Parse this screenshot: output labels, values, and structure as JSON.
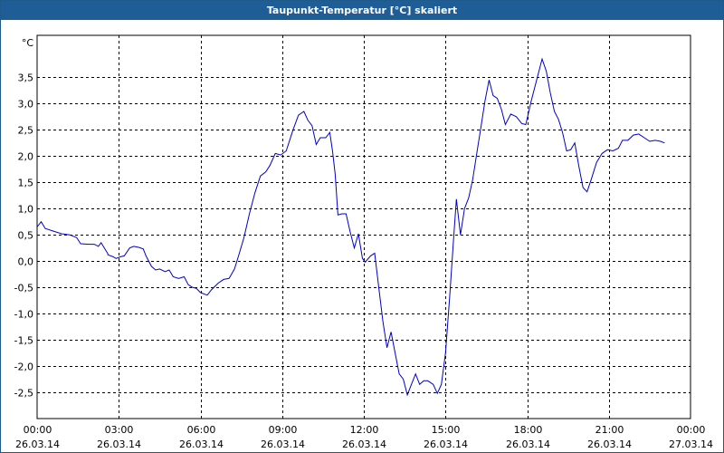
{
  "window": {
    "title": "Taupunkt-Temperatur [°C] skaliert"
  },
  "chart_data": {
    "type": "line",
    "title": "Taupunkt-Temperatur [°C] skaliert",
    "unit_label": "°C",
    "ylim": [
      -3.0,
      4.3
    ],
    "y_ticks": [
      3.5,
      3.0,
      2.5,
      2.0,
      1.5,
      1.0,
      0.5,
      0.0,
      -0.5,
      -1.0,
      -1.5,
      -2.0,
      -2.5
    ],
    "y_tick_labels": [
      "3,5",
      "3,0",
      "2,5",
      "2,0",
      "1,5",
      "1,0",
      "0,5",
      "0,0",
      "-0,5",
      "-1,0",
      "-1,5",
      "-2,0",
      "-2,5"
    ],
    "xlim": [
      0,
      24
    ],
    "x_ticks": [
      {
        "hours": 0,
        "time": "00:00",
        "date": "26.03.14"
      },
      {
        "hours": 3,
        "time": "03:00",
        "date": "26.03.14"
      },
      {
        "hours": 6,
        "time": "06:00",
        "date": "26.03.14"
      },
      {
        "hours": 9,
        "time": "09:00",
        "date": "26.03.14"
      },
      {
        "hours": 12,
        "time": "12:00",
        "date": "26.03.14"
      },
      {
        "hours": 15,
        "time": "15:00",
        "date": "26.03.14"
      },
      {
        "hours": 18,
        "time": "18:00",
        "date": "26.03.14"
      },
      {
        "hours": 21,
        "time": "21:00",
        "date": "26.03.14"
      },
      {
        "hours": 24,
        "time": "00:00",
        "date": "27.03.14"
      }
    ],
    "grid": true,
    "line_color": "#0000cc",
    "series": [
      {
        "name": "",
        "points": [
          [
            0.0,
            0.65
          ],
          [
            0.15,
            0.75
          ],
          [
            0.3,
            0.62
          ],
          [
            0.6,
            0.57
          ],
          [
            0.9,
            0.52
          ],
          [
            1.2,
            0.5
          ],
          [
            1.45,
            0.45
          ],
          [
            1.6,
            0.33
          ],
          [
            1.9,
            0.32
          ],
          [
            2.1,
            0.32
          ],
          [
            2.25,
            0.28
          ],
          [
            2.35,
            0.35
          ],
          [
            2.6,
            0.14
          ],
          [
            2.6,
            0.12
          ],
          [
            2.8,
            0.08
          ],
          [
            2.9,
            0.05
          ],
          [
            3.05,
            0.08
          ],
          [
            3.2,
            0.1
          ],
          [
            3.4,
            0.25
          ],
          [
            3.55,
            0.28
          ],
          [
            3.75,
            0.26
          ],
          [
            3.9,
            0.23
          ],
          [
            4.0,
            0.1
          ],
          [
            4.2,
            -0.1
          ],
          [
            4.35,
            -0.17
          ],
          [
            4.5,
            -0.15
          ],
          [
            4.7,
            -0.2
          ],
          [
            4.85,
            -0.17
          ],
          [
            5.0,
            -0.3
          ],
          [
            5.2,
            -0.33
          ],
          [
            5.4,
            -0.3
          ],
          [
            5.55,
            -0.45
          ],
          [
            5.7,
            -0.5
          ],
          [
            5.85,
            -0.52
          ],
          [
            6.0,
            -0.6
          ],
          [
            6.25,
            -0.65
          ],
          [
            6.4,
            -0.55
          ],
          [
            6.65,
            -0.42
          ],
          [
            6.85,
            -0.35
          ],
          [
            7.05,
            -0.33
          ],
          [
            7.25,
            -0.15
          ],
          [
            7.4,
            0.1
          ],
          [
            7.6,
            0.45
          ],
          [
            7.8,
            0.9
          ],
          [
            8.0,
            1.3
          ],
          [
            8.2,
            1.62
          ],
          [
            8.4,
            1.7
          ],
          [
            8.55,
            1.82
          ],
          [
            8.75,
            2.05
          ],
          [
            8.95,
            2.02
          ],
          [
            9.15,
            2.1
          ],
          [
            9.4,
            2.5
          ],
          [
            9.6,
            2.78
          ],
          [
            9.8,
            2.85
          ],
          [
            9.95,
            2.68
          ],
          [
            10.1,
            2.58
          ],
          [
            10.25,
            2.22
          ],
          [
            10.4,
            2.35
          ],
          [
            10.6,
            2.35
          ],
          [
            10.75,
            2.45
          ],
          [
            10.85,
            2.1
          ],
          [
            10.95,
            1.65
          ],
          [
            11.05,
            0.88
          ],
          [
            11.2,
            0.9
          ],
          [
            11.35,
            0.9
          ],
          [
            11.5,
            0.55
          ],
          [
            11.65,
            0.25
          ],
          [
            11.8,
            0.52
          ],
          [
            11.95,
            0.05
          ],
          [
            12.05,
            -0.02
          ],
          [
            12.25,
            0.1
          ],
          [
            12.4,
            0.15
          ],
          [
            12.55,
            -0.5
          ],
          [
            12.7,
            -1.15
          ],
          [
            12.85,
            -1.65
          ],
          [
            13.0,
            -1.35
          ],
          [
            13.15,
            -1.75
          ],
          [
            13.3,
            -2.15
          ],
          [
            13.45,
            -2.25
          ],
          [
            13.6,
            -2.55
          ],
          [
            13.75,
            -2.35
          ],
          [
            13.9,
            -2.15
          ],
          [
            14.05,
            -2.35
          ],
          [
            14.2,
            -2.28
          ],
          [
            14.35,
            -2.28
          ],
          [
            14.55,
            -2.35
          ],
          [
            14.7,
            -2.52
          ],
          [
            14.85,
            -2.35
          ],
          [
            15.0,
            -1.75
          ],
          [
            15.15,
            -0.7
          ],
          [
            15.3,
            0.45
          ],
          [
            15.4,
            1.18
          ],
          [
            15.55,
            0.5
          ],
          [
            15.7,
            1.0
          ],
          [
            15.85,
            1.2
          ],
          [
            16.0,
            1.55
          ],
          [
            16.15,
            2.05
          ],
          [
            16.3,
            2.55
          ],
          [
            16.45,
            3.05
          ],
          [
            16.6,
            3.45
          ],
          [
            16.75,
            3.15
          ],
          [
            16.9,
            3.1
          ],
          [
            17.05,
            2.9
          ],
          [
            17.2,
            2.6
          ],
          [
            17.4,
            2.8
          ],
          [
            17.6,
            2.75
          ],
          [
            17.8,
            2.62
          ],
          [
            17.95,
            2.6
          ],
          [
            18.15,
            3.05
          ],
          [
            18.35,
            3.45
          ],
          [
            18.55,
            3.85
          ],
          [
            18.7,
            3.62
          ],
          [
            18.85,
            3.2
          ],
          [
            19.0,
            2.85
          ],
          [
            19.15,
            2.7
          ],
          [
            19.3,
            2.45
          ],
          [
            19.45,
            2.1
          ],
          [
            19.6,
            2.12
          ],
          [
            19.75,
            2.25
          ],
          [
            19.9,
            1.8
          ],
          [
            20.05,
            1.4
          ],
          [
            20.2,
            1.32
          ],
          [
            20.35,
            1.55
          ],
          [
            20.55,
            1.88
          ],
          [
            20.75,
            2.05
          ],
          [
            20.95,
            2.12
          ],
          [
            21.15,
            2.1
          ],
          [
            21.35,
            2.15
          ],
          [
            21.5,
            2.3
          ],
          [
            21.7,
            2.3
          ],
          [
            21.9,
            2.4
          ],
          [
            22.1,
            2.42
          ],
          [
            22.3,
            2.35
          ],
          [
            22.5,
            2.28
          ],
          [
            22.7,
            2.3
          ],
          [
            22.9,
            2.28
          ],
          [
            23.05,
            2.25
          ]
        ]
      }
    ]
  }
}
